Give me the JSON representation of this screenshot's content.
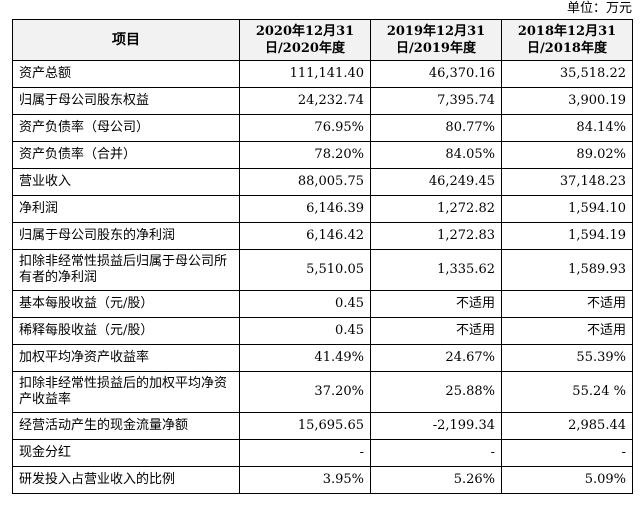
{
  "unit_label": "单位：万元",
  "table": {
    "headers": [
      "项目",
      "2020年12月31日/2020年度",
      "2019年12月31日/2019年度",
      "2018年12月31日/2018年度"
    ],
    "rows": [
      {
        "label": "资产总额",
        "values": [
          "111,141.40",
          "46,370.16",
          "35,518.22"
        ]
      },
      {
        "label": "归属于母公司股东权益",
        "values": [
          "24,232.74",
          "7,395.74",
          "3,900.19"
        ]
      },
      {
        "label": "资产负债率（母公司）",
        "values": [
          "76.95%",
          "80.77%",
          "84.14%"
        ]
      },
      {
        "label": "资产负债率（合并）",
        "values": [
          "78.20%",
          "84.05%",
          "89.02%"
        ]
      },
      {
        "label": "营业收入",
        "values": [
          "88,005.75",
          "46,249.45",
          "37,148.23"
        ]
      },
      {
        "label": "净利润",
        "values": [
          "6,146.39",
          "1,272.82",
          "1,594.10"
        ]
      },
      {
        "label": "归属于母公司股东的净利润",
        "values": [
          "6,146.42",
          "1,272.83",
          "1,594.19"
        ]
      },
      {
        "label": "扣除非经常性损益后归属于母公司所有者的净利润",
        "values": [
          "5,510.05",
          "1,335.62",
          "1,589.93"
        ]
      },
      {
        "label": "基本每股收益（元/股）",
        "values": [
          "0.45",
          "不适用",
          "不适用"
        ]
      },
      {
        "label": "稀释每股收益（元/股）",
        "values": [
          "0.45",
          "不适用",
          "不适用"
        ]
      },
      {
        "label": "加权平均净资产收益率",
        "values": [
          "41.49%",
          "24.67%",
          "55.39%"
        ]
      },
      {
        "label": "扣除非经常性损益后的加权平均净资产收益率",
        "values": [
          "37.20%",
          "25.88%",
          "55.24 %"
        ]
      },
      {
        "label": "经营活动产生的现金流量净额",
        "values": [
          "15,695.65",
          "-2,199.34",
          "2,985.44"
        ]
      },
      {
        "label": "现金分红",
        "values": [
          "-",
          "-",
          "-"
        ]
      },
      {
        "label": "研发投入占营业收入的比例",
        "values": [
          "3.95%",
          "5.26%",
          "5.09%"
        ]
      }
    ]
  }
}
